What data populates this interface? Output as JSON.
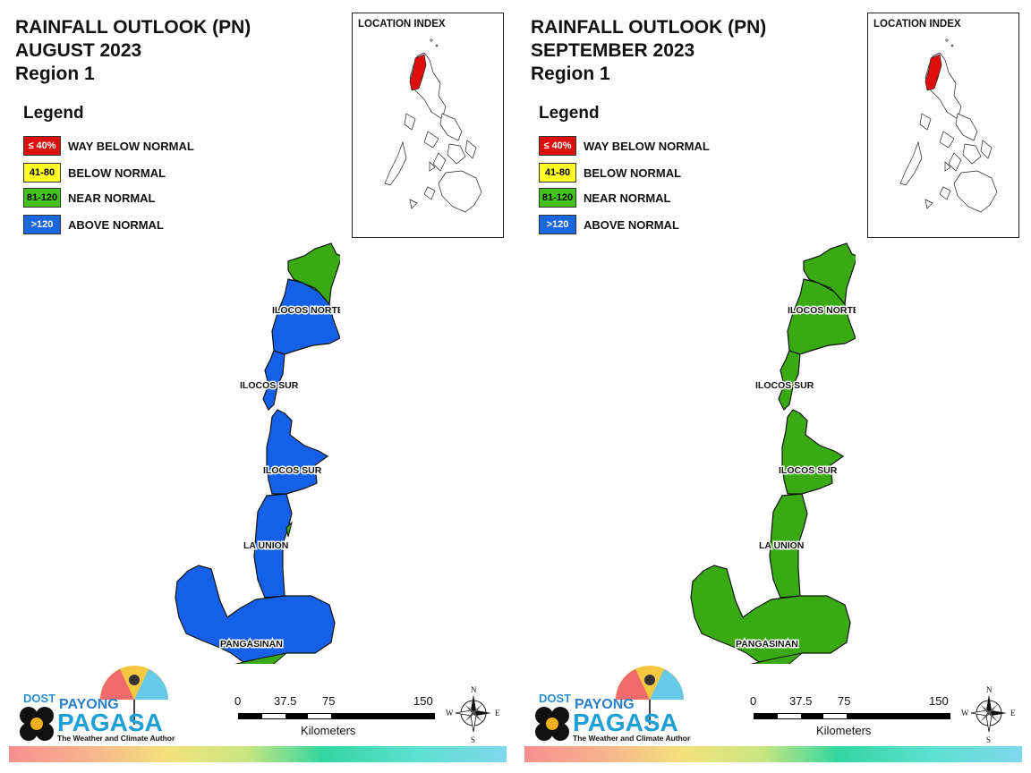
{
  "panels": [
    {
      "title_line1": "RAINFALL OUTLOOK (PN)",
      "title_line2": "AUGUST 2023",
      "title_line3": "Region 1",
      "province_colors": {
        "ilocos_norte_north": "#3aaa13",
        "ilocos_norte_south": "#1560e8",
        "ilocos_sur": "#1560e8",
        "la_union": "#1560e8",
        "pangasinan": "#1560e8",
        "pangasinan_patch": "#3aaa13"
      }
    },
    {
      "title_line1": "RAINFALL OUTLOOK (PN)",
      "title_line2": "SEPTEMBER 2023",
      "title_line3": "Region 1",
      "province_colors": {
        "ilocos_norte_north": "#3aaa13",
        "ilocos_norte_south": "#3aaa13",
        "ilocos_sur": "#3aaa13",
        "la_union": "#3aaa13",
        "pangasinan": "#3aaa13",
        "pangasinan_patch": "#3aaa13"
      }
    }
  ],
  "legend": {
    "title": "Legend",
    "items": [
      {
        "swatch_text": "≤ 40%",
        "label": "WAY BELOW NORMAL",
        "color": "#e00d0d",
        "text_color": "#ffffff"
      },
      {
        "swatch_text": "41-80",
        "label": "BELOW NORMAL",
        "color": "#ffff22",
        "text_color": "#000000"
      },
      {
        "swatch_text": "81-120",
        "label": "NEAR NORMAL",
        "color": "#44c31c",
        "text_color": "#000000"
      },
      {
        "swatch_text": ">120",
        "label": "ABOVE NORMAL",
        "color": "#1a66e0",
        "text_color": "#ffffff"
      }
    ]
  },
  "location_index": {
    "title": "LOCATION INDEX"
  },
  "province_labels": {
    "ilocos_norte": "ILOCOS NORTE",
    "ilocos_sur_north": "ILOCOS SUR",
    "ilocos_sur_south": "ILOCOS SUR",
    "la_union": "LA UNION",
    "pangasinan": "PANGASINAN"
  },
  "logo": {
    "dost": "DOST",
    "payong": "PAYONG",
    "pagasa": "PAGASA",
    "tagline": "The Weather and Climate Authority"
  },
  "scale": {
    "ticks": [
      "0",
      "37.5",
      "75",
      "150"
    ],
    "unit": "Kilometers"
  },
  "compass": {
    "n": "N",
    "s": "S",
    "e": "E",
    "w": "W"
  }
}
